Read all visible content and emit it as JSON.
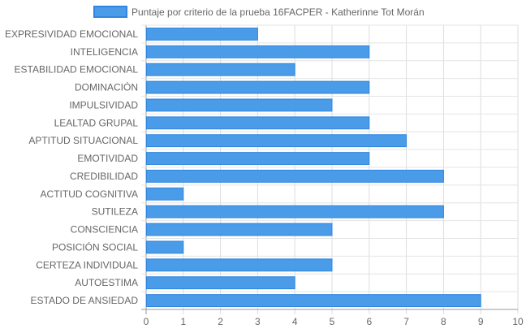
{
  "chart_data": {
    "type": "bar",
    "orientation": "horizontal",
    "categories": [
      "EXPRESIVIDAD EMOCIONAL",
      "INTELIGENCIA",
      "ESTABILIDAD EMOCIONAL",
      "DOMINACIÓN",
      "IMPULSIVIDAD",
      "LEALTAD GRUPAL",
      "APTITUD SITUACIONAL",
      "EMOTIVIDAD",
      "CREDIBILIDAD",
      "ACTITUD COGNITIVA",
      "SUTILEZA",
      "CONSCIENCIA",
      "POSICIÓN SOCIAL",
      "CERTEZA INDIVIDUAL",
      "AUTOESTIMA",
      "ESTADO DE ANSIEDAD"
    ],
    "series": [
      {
        "name": "Puntaje por criterio de la prueba 16FACPER - Katherinne Tot Morán",
        "values": [
          3,
          6,
          4,
          6,
          5,
          6,
          7,
          6,
          8,
          1,
          8,
          5,
          1,
          5,
          4,
          9
        ],
        "color": "#4a9be8",
        "border_color": "#2f86e0"
      }
    ],
    "xlim": [
      0,
      10
    ],
    "x_ticks": [
      "0",
      "1",
      "2",
      "3",
      "4",
      "5",
      "6",
      "7",
      "8",
      "9",
      "10"
    ],
    "grid": true,
    "legend_position": "top-center",
    "xlabel": "",
    "ylabel": ""
  }
}
